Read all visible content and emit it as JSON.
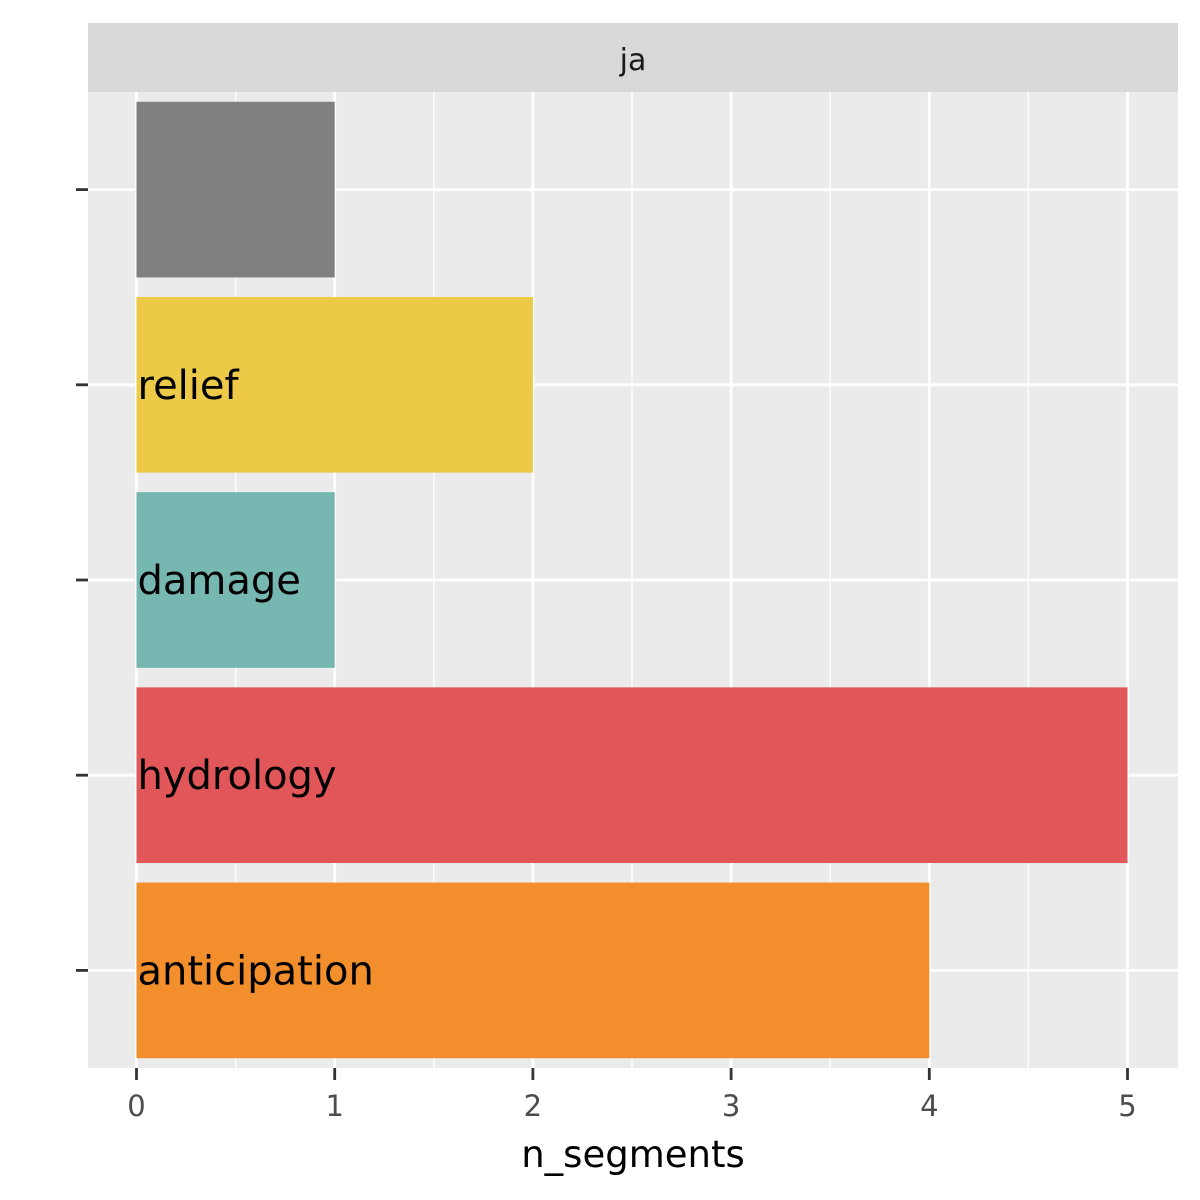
{
  "chart_data": {
    "type": "bar",
    "orientation": "horizontal",
    "facet_label": "ja",
    "xlabel": "n_segments",
    "ylabel": "",
    "xlim": [
      0,
      5
    ],
    "xticks": [
      0,
      1,
      2,
      3,
      4,
      5
    ],
    "grid": true,
    "legend": "none",
    "bars": [
      {
        "label": "anticipation",
        "value": 4,
        "color": "#F28E2B"
      },
      {
        "label": "hydrology",
        "value": 5,
        "color": "#E15759"
      },
      {
        "label": "damage",
        "value": 1,
        "color": "#76B7B2"
      },
      {
        "label": "relief",
        "value": 2,
        "color": "#EDC948"
      },
      {
        "label": "",
        "value": 1,
        "color": "#808080"
      }
    ]
  },
  "colors": {
    "panel_background": "#EBEBEB",
    "strip_background": "#D9D9D9",
    "grid": "#FFFFFF"
  }
}
